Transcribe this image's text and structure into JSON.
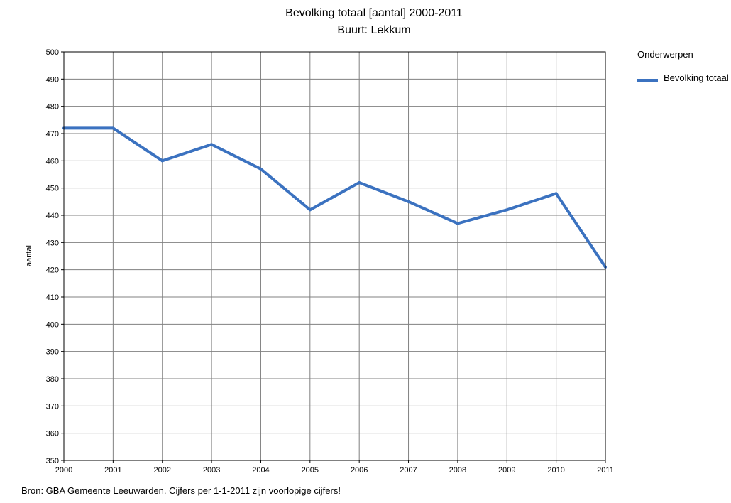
{
  "chart_data": {
    "type": "line",
    "title": "Bevolking totaal [aantal] 2000-2011",
    "subtitle": "Buurt: Lekkum",
    "xlabel": "",
    "ylabel": "aantal",
    "x": [
      "2000",
      "2001",
      "2002",
      "2003",
      "2004",
      "2005",
      "2006",
      "2007",
      "2008",
      "2009",
      "2010",
      "2011"
    ],
    "ylim": [
      350,
      500
    ],
    "yticks": [
      350,
      360,
      370,
      380,
      390,
      400,
      410,
      420,
      430,
      440,
      450,
      460,
      470,
      480,
      490,
      500
    ],
    "grid": true,
    "legend": {
      "title": "Onderwerpen",
      "placement": "right"
    },
    "series": [
      {
        "name": "Bevolking totaal",
        "color": "#3b72c0",
        "values": [
          472,
          472,
          460,
          466,
          457,
          442,
          452,
          445,
          437,
          442,
          448,
          421
        ]
      }
    ]
  },
  "source_note": "Bron: GBA Gemeente Leeuwarden. Cijfers per 1-1-2011 zijn voorlopige cijfers!"
}
